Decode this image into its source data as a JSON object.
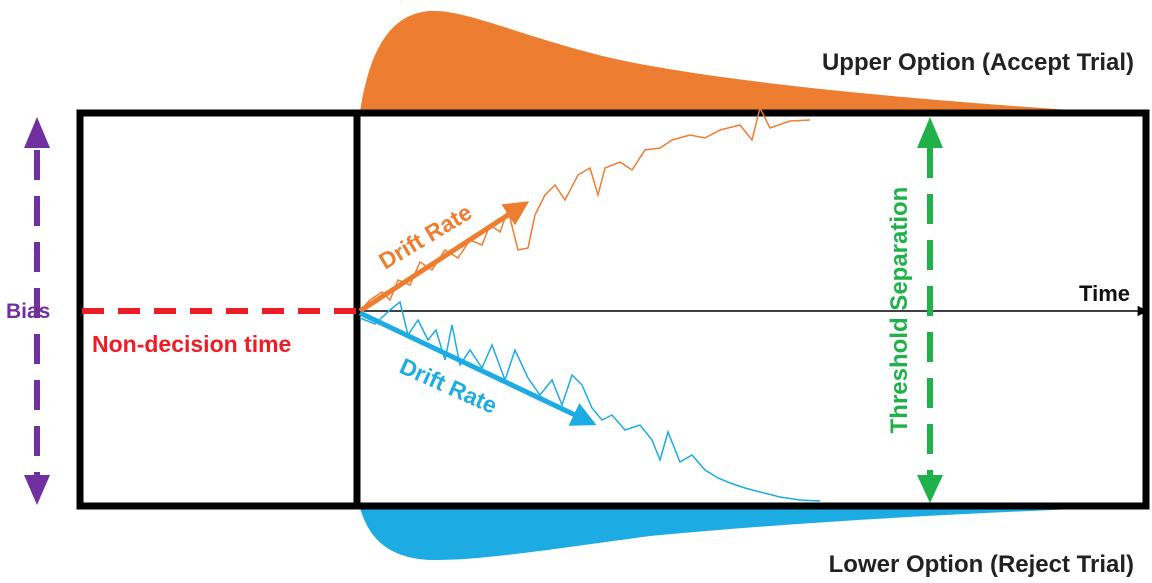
{
  "labels": {
    "upper_option": "Upper Option (Accept Trial)",
    "lower_option": "Lower Option (Reject Trial)",
    "time": "Time",
    "bias": "Bias",
    "non_decision_time": "Non-decision time",
    "drift_rate_upper": "Drift Rate",
    "drift_rate_lower": "Drift Rate",
    "threshold_separation": "Threshold Separation"
  },
  "colors": {
    "upper": "#ed7d31",
    "lower": "#1cabe2",
    "bias": "#7030a0",
    "non_decision": "#ee1c25",
    "threshold": "#21b14b",
    "frame": "#000000"
  }
}
